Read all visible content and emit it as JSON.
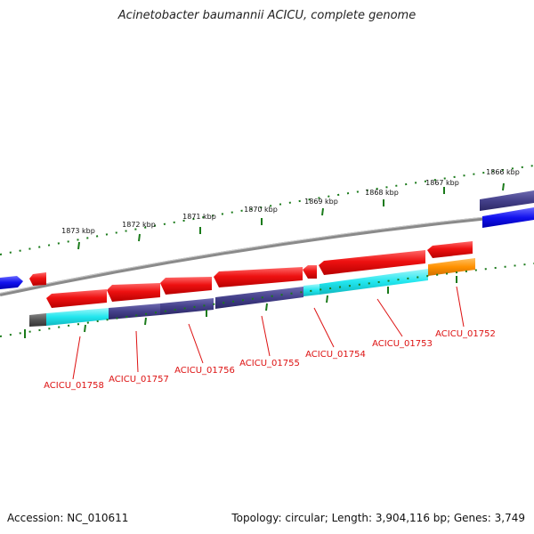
{
  "title": "Acinetobacter baumannii ACICU, complete genome",
  "footer": {
    "accession": "Accession: NC_010611",
    "summary": "Topology: circular; Length: 3,904,116 bp; Genes: 3,749"
  },
  "colors": {
    "forward_cds": "#ee1111",
    "reverse_cds": "#44408a",
    "cyan_track": "#22e6ee",
    "orange_track": "#ff9100",
    "blue_gene": "#1111ee",
    "backbone": "#8a8a8a",
    "tick_green": "#1a7a1a",
    "label_red": "#dd1111",
    "dark_gray_block": "#555555"
  },
  "kbp_labels": [
    "1866 kbp",
    "1867 kbp",
    "1868 kbp",
    "1869 kbp",
    "1870 kbp",
    "1871 kbp",
    "1872 kbp",
    "1873 kbp"
  ],
  "gene_labels": [
    "ACICU_01752",
    "ACICU_01753",
    "ACICU_01754",
    "ACICU_01755",
    "ACICU_01756",
    "ACICU_01757",
    "ACICU_01758"
  ]
}
